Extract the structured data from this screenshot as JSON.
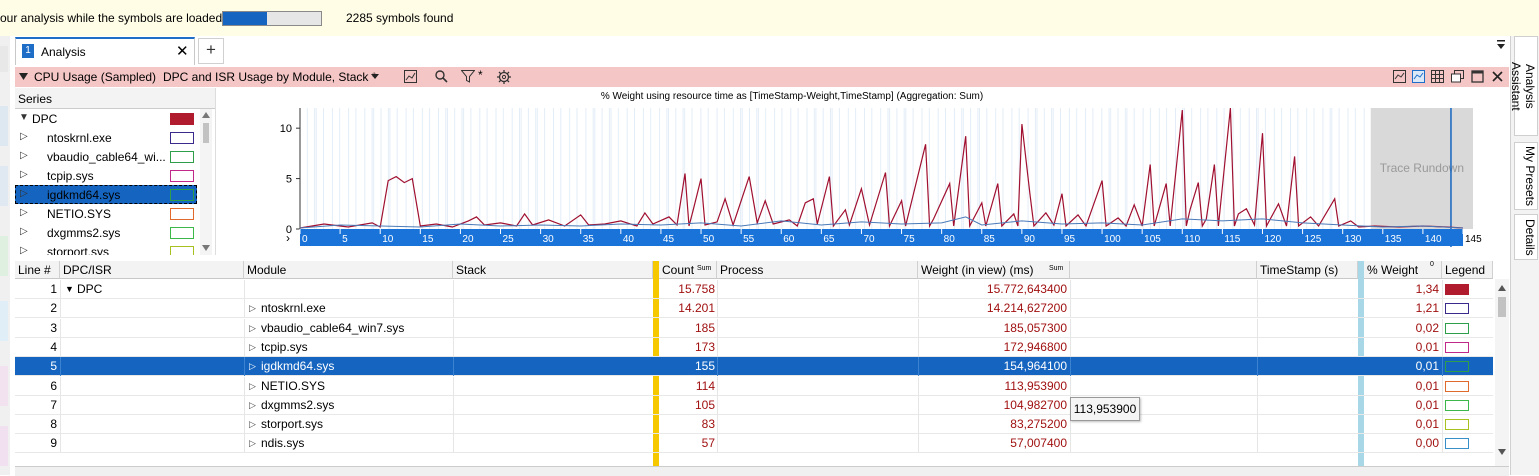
{
  "notification": {
    "text": "our analysis while the symbols are loaded",
    "progress": 0.45,
    "symbols_found": "2285 symbols found"
  },
  "tabs": [
    {
      "number": "1",
      "label": "Analysis",
      "close": "✕"
    }
  ],
  "add_tab": "+",
  "right_sidebar": [
    "Analysis Assistant",
    "My Presets",
    "Details"
  ],
  "graph_header": {
    "graph": "CPU Usage (Sampled)",
    "preset": "DPC and ISR Usage by Module, Stack *",
    "filter_mark": "*"
  },
  "series_panel": {
    "header": "Series",
    "items": [
      {
        "name": "DPC",
        "color": "#b01c2e",
        "filled": true,
        "expanded": true
      },
      {
        "name": "ntoskrnl.exe",
        "color": "#3a2a8c"
      },
      {
        "name": "vbaudio_cable64_wi...",
        "color": "#2f9e4a"
      },
      {
        "name": "tcpip.sys",
        "color": "#c0288a"
      },
      {
        "name": "igdkmd64.sys",
        "color": "#2f9e4a",
        "selected": true
      },
      {
        "name": "NETIO.SYS",
        "color": "#e06a2c"
      },
      {
        "name": "dxgmms2.sys",
        "color": "#3cb84a"
      },
      {
        "name": "storport.sys",
        "color": "#a8c020"
      }
    ]
  },
  "chart_data": {
    "type": "line",
    "title": "% Weight using resource time as [TimeStamp-Weight,TimeStamp] (Aggregation: Sum)",
    "x_ticks": [
      "0",
      "5",
      "10",
      "15",
      "20",
      "25",
      "30",
      "35",
      "40",
      "45",
      "50",
      "55",
      "60",
      "65",
      "70",
      "75",
      "80",
      "85",
      "90",
      "95",
      "100",
      "105",
      "110",
      "115",
      "120",
      "125",
      "130",
      "135",
      "140",
      "145"
    ],
    "y_ticks": [
      "0",
      "5",
      "10"
    ],
    "ylim": [
      0,
      12
    ],
    "xlim": [
      0,
      145
    ],
    "rundown_label": "Trace Rundown",
    "rundown_start": 133.5,
    "series": [
      {
        "name": "DPC",
        "color": "#a01030",
        "values": [
          [
            0,
            0.1
          ],
          [
            3,
            0.5
          ],
          [
            6,
            0.2
          ],
          [
            9,
            0.6
          ],
          [
            10,
            0.2
          ],
          [
            11,
            4.8
          ],
          [
            12,
            5.2
          ],
          [
            13,
            4.6
          ],
          [
            14,
            5.0
          ],
          [
            15,
            0.3
          ],
          [
            17,
            0.5
          ],
          [
            19,
            0.2
          ],
          [
            21,
            0.8
          ],
          [
            22,
            1.2
          ],
          [
            23,
            0.4
          ],
          [
            25,
            0.6
          ],
          [
            27,
            0.3
          ],
          [
            28,
            1.5
          ],
          [
            29,
            0.4
          ],
          [
            31,
            0.9
          ],
          [
            33,
            0.3
          ],
          [
            35,
            1.4
          ],
          [
            36,
            0.4
          ],
          [
            38,
            0.5
          ],
          [
            40,
            0.8
          ],
          [
            42,
            0.3
          ],
          [
            43,
            1.6
          ],
          [
            44,
            0.5
          ],
          [
            46,
            1.2
          ],
          [
            47,
            0.4
          ],
          [
            48,
            5.5
          ],
          [
            48.5,
            0.3
          ],
          [
            49,
            1.8
          ],
          [
            50,
            5.0
          ],
          [
            50.5,
            0.4
          ],
          [
            52,
            0.7
          ],
          [
            53,
            3.0
          ],
          [
            54,
            0.4
          ],
          [
            56,
            5.2
          ],
          [
            57,
            0.6
          ],
          [
            58,
            2.8
          ],
          [
            59,
            0.5
          ],
          [
            61,
            0.9
          ],
          [
            62,
            0.3
          ],
          [
            63,
            2.6
          ],
          [
            64,
            3.0
          ],
          [
            64.5,
            0.5
          ],
          [
            66,
            5.2
          ],
          [
            66.5,
            0.3
          ],
          [
            68,
            1.9
          ],
          [
            68.5,
            0.4
          ],
          [
            70,
            4.0
          ],
          [
            71,
            0.4
          ],
          [
            73,
            5.6
          ],
          [
            73.5,
            0.3
          ],
          [
            75,
            2.8
          ],
          [
            75.5,
            0.3
          ],
          [
            78,
            8.4
          ],
          [
            78.5,
            0.3
          ],
          [
            79,
            1.0
          ],
          [
            81,
            4.5
          ],
          [
            81.5,
            0.3
          ],
          [
            83,
            9.2
          ],
          [
            83.5,
            0.3
          ],
          [
            85,
            2.6
          ],
          [
            85.5,
            0.3
          ],
          [
            87,
            4.5
          ],
          [
            87.5,
            0.3
          ],
          [
            89,
            1.5
          ],
          [
            89.5,
            0.3
          ],
          [
            90,
            10.4
          ],
          [
            91,
            3.5
          ],
          [
            91.5,
            0.3
          ],
          [
            93,
            1.6
          ],
          [
            94,
            0.4
          ],
          [
            95,
            3.5
          ],
          [
            95.5,
            0.3
          ],
          [
            97,
            1.4
          ],
          [
            98,
            0.3
          ],
          [
            100,
            4.8
          ],
          [
            100.5,
            0.3
          ],
          [
            102,
            1.1
          ],
          [
            103,
            0.3
          ],
          [
            104,
            2.4
          ],
          [
            105,
            0.3
          ],
          [
            106,
            6.4
          ],
          [
            106.5,
            0.3
          ],
          [
            108,
            4.5
          ],
          [
            108.5,
            0.3
          ],
          [
            110,
            11.8
          ],
          [
            110.5,
            0.3
          ],
          [
            111,
            2.0
          ],
          [
            112,
            4.6
          ],
          [
            112.5,
            0.3
          ],
          [
            113,
            1.0
          ],
          [
            114,
            6.4
          ],
          [
            114.5,
            0.3
          ],
          [
            116,
            12.0
          ],
          [
            116.5,
            0.3
          ],
          [
            117,
            1.5
          ],
          [
            118,
            2.0
          ],
          [
            119,
            0.4
          ],
          [
            120,
            9.5
          ],
          [
            120.5,
            0.3
          ],
          [
            122,
            2.5
          ],
          [
            123,
            0.3
          ],
          [
            124,
            7.2
          ],
          [
            124.5,
            0.3
          ],
          [
            126,
            1.2
          ],
          [
            127,
            0.3
          ],
          [
            129,
            3.0
          ],
          [
            129.5,
            0.3
          ],
          [
            131,
            0.8
          ],
          [
            132,
            0.2
          ],
          [
            134,
            0.3
          ],
          [
            137,
            0.2
          ],
          [
            140,
            0.3
          ],
          [
            143,
            0.2
          ],
          [
            145,
            0.1
          ]
        ]
      },
      {
        "name": "ntoskrnl.exe",
        "color": "#4a7ab8",
        "values": [
          [
            0,
            0.1
          ],
          [
            5,
            0.4
          ],
          [
            10,
            0.3
          ],
          [
            15,
            0.2
          ],
          [
            20,
            0.5
          ],
          [
            25,
            0.3
          ],
          [
            30,
            0.4
          ],
          [
            35,
            0.3
          ],
          [
            40,
            0.5
          ],
          [
            45,
            0.4
          ],
          [
            50,
            0.6
          ],
          [
            55,
            0.3
          ],
          [
            60,
            0.8
          ],
          [
            65,
            0.4
          ],
          [
            70,
            0.7
          ],
          [
            75,
            0.5
          ],
          [
            80,
            0.6
          ],
          [
            83,
            1.2
          ],
          [
            85,
            0.4
          ],
          [
            90,
            0.8
          ],
          [
            95,
            0.5
          ],
          [
            100,
            0.6
          ],
          [
            105,
            0.4
          ],
          [
            110,
            1.0
          ],
          [
            115,
            0.8
          ],
          [
            120,
            1.0
          ],
          [
            125,
            0.6
          ],
          [
            130,
            0.4
          ],
          [
            135,
            0.2
          ],
          [
            140,
            0.3
          ],
          [
            145,
            0.1
          ]
        ]
      }
    ]
  },
  "table": {
    "columns": [
      "Line #",
      "DPC/ISR",
      "Module",
      "Stack",
      "Count",
      "Process",
      "Weight (in view) (ms)",
      "",
      "TimeStamp (s)",
      "% Weight",
      "Legend"
    ],
    "sum_labels": {
      "count": "Sum",
      "weight": "Sum",
      "pct": "0"
    },
    "rows": [
      {
        "line": "1",
        "dpc": "DPC",
        "module": "",
        "count": "15.758",
        "weight": "15.772,643400",
        "pct": "1,34",
        "legend": "#b01c2e",
        "filled": true
      },
      {
        "line": "2",
        "dpc": "",
        "module": "ntoskrnl.exe",
        "count": "14.201",
        "weight": "14.214,627200",
        "pct": "1,21",
        "legend": "#3a2a8c"
      },
      {
        "line": "3",
        "dpc": "",
        "module": "vbaudio_cable64_win7.sys",
        "count": "185",
        "weight": "185,057300",
        "pct": "0,02",
        "legend": "#2f9e4a"
      },
      {
        "line": "4",
        "dpc": "",
        "module": "tcpip.sys",
        "count": "173",
        "weight": "172,946800",
        "pct": "0,01",
        "legend": "#c0288a"
      },
      {
        "line": "5",
        "dpc": "",
        "module": "igdkmd64.sys",
        "count": "155",
        "weight": "154,964100",
        "pct": "0,01",
        "legend": "#2f9e4a",
        "selected": true
      },
      {
        "line": "6",
        "dpc": "",
        "module": "NETIO.SYS",
        "count": "114",
        "weight": "113,953900",
        "pct": "0,01",
        "legend": "#e06a2c"
      },
      {
        "line": "7",
        "dpc": "",
        "module": "dxgmms2.sys",
        "count": "105",
        "weight": "104,982700",
        "pct": "0,01",
        "legend": "#3cb84a"
      },
      {
        "line": "8",
        "dpc": "",
        "module": "storport.sys",
        "count": "83",
        "weight": "83,275200",
        "pct": "0,01",
        "legend": "#a8c020"
      },
      {
        "line": "9",
        "dpc": "",
        "module": "ndis.sys",
        "count": "57",
        "weight": "57,007400",
        "pct": "0,00",
        "legend": "#3a8fc8"
      }
    ],
    "tooltip": "113,953900"
  }
}
